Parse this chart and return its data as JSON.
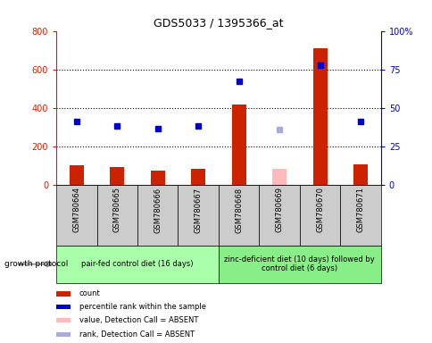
{
  "title": "GDS5033 / 1395366_at",
  "samples": [
    "GSM780664",
    "GSM780665",
    "GSM780666",
    "GSM780667",
    "GSM780668",
    "GSM780669",
    "GSM780670",
    "GSM780671"
  ],
  "count_values": [
    105,
    95,
    75,
    85,
    420,
    null,
    710,
    110
  ],
  "count_absent": [
    null,
    null,
    null,
    null,
    null,
    85,
    null,
    null
  ],
  "percentile_values": [
    330,
    305,
    295,
    305,
    540,
    null,
    620,
    330
  ],
  "percentile_absent": [
    null,
    null,
    null,
    null,
    null,
    290,
    null,
    null
  ],
  "ylim_left": [
    0,
    800
  ],
  "ylim_right": [
    0,
    100
  ],
  "yticks_left": [
    0,
    200,
    400,
    600,
    800
  ],
  "yticks_right": [
    0,
    25,
    50,
    75,
    100
  ],
  "group1_label": "pair-fed control diet (16 days)",
  "group2_label": "zinc-deficient diet (10 days) followed by\ncontrol diet (6 days)",
  "group1_color": "#aaffaa",
  "group2_color": "#88ee88",
  "bar_color": "#cc2200",
  "bar_absent_color": "#ffbbbb",
  "point_color": "#0000cc",
  "point_absent_color": "#aaaadd",
  "growth_protocol_label": "growth protocol",
  "legend_items": [
    {
      "color": "#cc2200",
      "label": "count"
    },
    {
      "color": "#0000cc",
      "label": "percentile rank within the sample"
    },
    {
      "color": "#ffbbbb",
      "label": "value, Detection Call = ABSENT"
    },
    {
      "color": "#aaaadd",
      "label": "rank, Detection Call = ABSENT"
    }
  ],
  "sample_bg_color": "#cccccc",
  "left_axis_color": "#cc2200",
  "right_axis_color": "#0000cc",
  "bar_width": 0.35,
  "marker_size": 5
}
